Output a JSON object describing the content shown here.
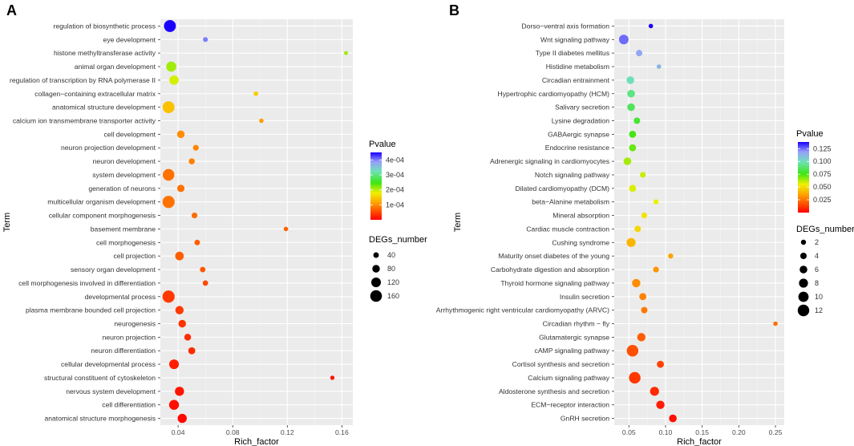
{
  "chart_data": [
    {
      "panel": "A",
      "type": "scatter",
      "xlabel": "Rich_factor",
      "ylabel": "Term",
      "xlim": [
        0.027,
        0.168
      ],
      "xticks": [
        0.04,
        0.08,
        0.12,
        0.16
      ],
      "xtick_labels": [
        "0.04",
        "0.08",
        "0.12",
        "0.16"
      ],
      "grid": true,
      "legend": {
        "position": "right",
        "color_title": "Pvalue",
        "color_range": [
          0,
          0.00045
        ],
        "color_ticks": [
          0.0001,
          0.0002,
          0.0003,
          0.0004
        ],
        "color_tick_labels": [
          "1e-04",
          "2e-04",
          "3e-04",
          "4e-04"
        ],
        "size_title": "DEGs_number",
        "size_range": [
          10,
          170
        ],
        "size_ticks": [
          40,
          80,
          120,
          160
        ],
        "size_tick_labels": [
          "40",
          "80",
          "120",
          "160"
        ]
      },
      "points": [
        {
          "term": "regulation of biosynthetic process",
          "x": 0.034,
          "pvalue": 0.00045,
          "degs": 165
        },
        {
          "term": "eye development",
          "x": 0.06,
          "pvalue": 0.0004,
          "degs": 28
        },
        {
          "term": "histone methyltransferase activity",
          "x": 0.163,
          "pvalue": 0.00021,
          "degs": 10
        },
        {
          "term": "animal organ development",
          "x": 0.035,
          "pvalue": 0.00021,
          "degs": 130
        },
        {
          "term": "regulation of transcription by RNA polymerase II",
          "x": 0.037,
          "pvalue": 0.00019,
          "degs": 115
        },
        {
          "term": "collagen−containing extracellular matrix",
          "x": 0.097,
          "pvalue": 0.00015,
          "degs": 22
        },
        {
          "term": "anatomical structure development",
          "x": 0.033,
          "pvalue": 0.00014,
          "degs": 165
        },
        {
          "term": "calcium ion transmembrane transporter activity",
          "x": 0.101,
          "pvalue": 0.00011,
          "degs": 18
        },
        {
          "term": "cell development",
          "x": 0.042,
          "pvalue": 0.0001,
          "degs": 80
        },
        {
          "term": "neuron projection development",
          "x": 0.053,
          "pvalue": 9.5e-05,
          "degs": 45
        },
        {
          "term": "neuron development",
          "x": 0.05,
          "pvalue": 9e-05,
          "degs": 50
        },
        {
          "term": "system development",
          "x": 0.033,
          "pvalue": 8e-05,
          "degs": 160
        },
        {
          "term": "generation of neurons",
          "x": 0.042,
          "pvalue": 8e-05,
          "degs": 75
        },
        {
          "term": "multicellular organism development",
          "x": 0.033,
          "pvalue": 8e-05,
          "degs": 170
        },
        {
          "term": "cellular component morphogenesis",
          "x": 0.052,
          "pvalue": 7.5e-05,
          "degs": 45
        },
        {
          "term": "basement membrane",
          "x": 0.119,
          "pvalue": 7e-05,
          "degs": 20
        },
        {
          "term": "cell morphogenesis",
          "x": 0.054,
          "pvalue": 6.5e-05,
          "degs": 40
        },
        {
          "term": "cell projection",
          "x": 0.041,
          "pvalue": 6.5e-05,
          "degs": 100
        },
        {
          "term": "sensory organ development",
          "x": 0.058,
          "pvalue": 6e-05,
          "degs": 40
        },
        {
          "term": "cell morphogenesis involved in differentiation",
          "x": 0.06,
          "pvalue": 5e-05,
          "degs": 38
        },
        {
          "term": "developmental process",
          "x": 0.033,
          "pvalue": 4e-05,
          "degs": 170
        },
        {
          "term": "plasma membrane bounded cell projection",
          "x": 0.041,
          "pvalue": 4e-05,
          "degs": 95
        },
        {
          "term": "neurogenesis",
          "x": 0.043,
          "pvalue": 3.5e-05,
          "degs": 80
        },
        {
          "term": "neuron projection",
          "x": 0.047,
          "pvalue": 3e-05,
          "degs": 65
        },
        {
          "term": "neuron differentiation",
          "x": 0.05,
          "pvalue": 3e-05,
          "degs": 70
        },
        {
          "term": "cellular developmental process",
          "x": 0.037,
          "pvalue": 2e-05,
          "degs": 120
        },
        {
          "term": "structural constituent of cytoskeleton",
          "x": 0.153,
          "pvalue": 1.5e-05,
          "degs": 15
        },
        {
          "term": "nervous system development",
          "x": 0.041,
          "pvalue": 1.5e-05,
          "degs": 110
        },
        {
          "term": "cell differentiation",
          "x": 0.037,
          "pvalue": 1e-05,
          "degs": 125
        },
        {
          "term": "anatomical structure morphogenesis",
          "x": 0.043,
          "pvalue": 5e-06,
          "degs": 110
        }
      ]
    },
    {
      "panel": "B",
      "type": "scatter",
      "xlabel": "Rich_factor",
      "ylabel": "Term",
      "xlim": [
        0.03,
        0.262
      ],
      "xticks": [
        0.05,
        0.1,
        0.15,
        0.2,
        0.25
      ],
      "xtick_labels": [
        "0.05",
        "0.10",
        "0.15",
        "0.20",
        "0.25"
      ],
      "grid": true,
      "legend": {
        "position": "right",
        "color_title": "Pvalue",
        "color_range": [
          0,
          0.138
        ],
        "color_ticks": [
          0.025,
          0.05,
          0.075,
          0.1,
          0.125
        ],
        "color_tick_labels": [
          "0.025",
          "0.050",
          "0.075",
          "0.100",
          "0.125"
        ],
        "size_title": "DEGs_number",
        "size_range": [
          1,
          13
        ],
        "size_ticks": [
          2,
          4,
          6,
          8,
          10,
          12
        ],
        "size_tick_labels": [
          "2",
          "4",
          "6",
          "8",
          "10",
          "12"
        ]
      },
      "points": [
        {
          "term": "Dorso−ventral axis formation",
          "x": 0.08,
          "pvalue": 0.138,
          "degs": 1
        },
        {
          "term": "Wnt signaling pathway",
          "x": 0.043,
          "pvalue": 0.125,
          "degs": 9
        },
        {
          "term": "Type II diabetes mellitus",
          "x": 0.064,
          "pvalue": 0.117,
          "degs": 4
        },
        {
          "term": "Histidine metabolism",
          "x": 0.091,
          "pvalue": 0.112,
          "degs": 1
        },
        {
          "term": "Circadian entrainment",
          "x": 0.052,
          "pvalue": 0.1,
          "degs": 6
        },
        {
          "term": "Hypertrophic cardiomyopathy (HCM)",
          "x": 0.053,
          "pvalue": 0.092,
          "degs": 6
        },
        {
          "term": "Salivary secretion",
          "x": 0.053,
          "pvalue": 0.086,
          "degs": 6
        },
        {
          "term": "Lysine degradation",
          "x": 0.061,
          "pvalue": 0.08,
          "degs": 4
        },
        {
          "term": "GABAergic synapse",
          "x": 0.055,
          "pvalue": 0.075,
          "degs": 5
        },
        {
          "term": "Endocrine resistance",
          "x": 0.055,
          "pvalue": 0.071,
          "degs": 5
        },
        {
          "term": "Adrenergic signaling in cardiomyocytes",
          "x": 0.048,
          "pvalue": 0.064,
          "degs": 6
        },
        {
          "term": "Notch signaling pathway",
          "x": 0.069,
          "pvalue": 0.06,
          "degs": 3
        },
        {
          "term": "Dilated cardiomyopathy (DCM)",
          "x": 0.055,
          "pvalue": 0.058,
          "degs": 5
        },
        {
          "term": "beta−Alanine metabolism",
          "x": 0.087,
          "pvalue": 0.056,
          "degs": 2
        },
        {
          "term": "Mineral absorption",
          "x": 0.071,
          "pvalue": 0.052,
          "degs": 3
        },
        {
          "term": "Cardiac muscle contraction",
          "x": 0.062,
          "pvalue": 0.049,
          "degs": 4
        },
        {
          "term": "Cushing syndrome",
          "x": 0.053,
          "pvalue": 0.04,
          "degs": 8
        },
        {
          "term": "Maturity onset diabetes of the young",
          "x": 0.107,
          "pvalue": 0.035,
          "degs": 2
        },
        {
          "term": "Carbohydrate digestion and absorption",
          "x": 0.087,
          "pvalue": 0.032,
          "degs": 3
        },
        {
          "term": "Thyroid hormone signaling pathway",
          "x": 0.06,
          "pvalue": 0.03,
          "degs": 7
        },
        {
          "term": "Insulin secretion",
          "x": 0.069,
          "pvalue": 0.028,
          "degs": 5
        },
        {
          "term": "Arrhythmogenic right ventricular cardiomyopathy (ARVC)",
          "x": 0.071,
          "pvalue": 0.026,
          "degs": 4
        },
        {
          "term": "Circadian rhythm − fly",
          "x": 0.25,
          "pvalue": 0.024,
          "degs": 1
        },
        {
          "term": "Glutamatergic synapse",
          "x": 0.067,
          "pvalue": 0.02,
          "degs": 7
        },
        {
          "term": "cAMP signaling pathway",
          "x": 0.055,
          "pvalue": 0.017,
          "degs": 12
        },
        {
          "term": "Cortisol synthesis and secretion",
          "x": 0.093,
          "pvalue": 0.014,
          "degs": 5
        },
        {
          "term": "Calcium signaling pathway",
          "x": 0.058,
          "pvalue": 0.012,
          "degs": 12
        },
        {
          "term": "Aldosterone synthesis and secretion",
          "x": 0.085,
          "pvalue": 0.009,
          "degs": 8
        },
        {
          "term": "ECM−receptor interaction",
          "x": 0.093,
          "pvalue": 0.006,
          "degs": 7
        },
        {
          "term": "GnRH secretion",
          "x": 0.11,
          "pvalue": 0.003,
          "degs": 6
        }
      ]
    }
  ]
}
